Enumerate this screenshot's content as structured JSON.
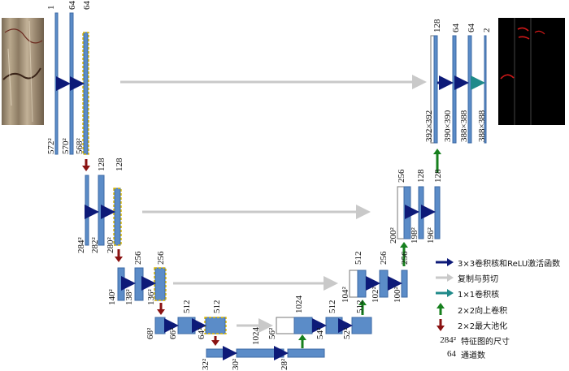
{
  "input_image": {
    "name": "input-image-tile"
  },
  "output_image": {
    "name": "output-segmentation-map"
  },
  "encoder": [
    {
      "channels": [
        "1",
        "64",
        "64"
      ],
      "sizes": [
        "572²",
        "570²",
        "568²"
      ]
    },
    {
      "channels": [
        "128",
        "128"
      ],
      "sizes": [
        "284²",
        "282²",
        "280²"
      ]
    },
    {
      "channels": [
        "256",
        "256"
      ],
      "sizes": [
        "140²",
        "138²",
        "136²"
      ]
    },
    {
      "channels": [
        "512",
        "512"
      ],
      "sizes": [
        "68²",
        "66²",
        "64²"
      ]
    },
    {
      "channels": [
        "1024",
        "1024"
      ],
      "sizes": [
        "32²",
        "30²",
        "28²"
      ]
    }
  ],
  "decoder": [
    {
      "channels": [
        "1024",
        "512",
        "512"
      ],
      "sizes": [
        "56²",
        "54²",
        "52²"
      ]
    },
    {
      "channels": [
        "512",
        "256",
        "256"
      ],
      "sizes": [
        "104²",
        "102²",
        "100²"
      ]
    },
    {
      "channels": [
        "256",
        "128",
        "128"
      ],
      "sizes": [
        "200²",
        "198²",
        "196²"
      ]
    },
    {
      "channels": [
        "128",
        "64",
        "64",
        "2"
      ],
      "sizes": [
        "392×392",
        "390×390",
        "388×388",
        "388×388"
      ]
    }
  ],
  "legend": {
    "conv": "3×3卷积核和ReLU激活函数",
    "copy": "复制与剪切",
    "conv1": "1×1卷积核",
    "upconv": "2×2向上卷积",
    "pool": "2×2最大池化",
    "size_example": "284²",
    "size_desc": "特征图的尺寸",
    "channel_example": "64",
    "channel_desc": "通道数"
  },
  "colors": {
    "block": "#5b8cc8",
    "block_border": "#3c6aa5",
    "conv_arrow": "#0d1a78",
    "copy_arrow": "#c9c9c9",
    "conv1_arrow": "#1f8a8a",
    "upconv_arrow": "#17801e",
    "pool_arrow": "#8a1212",
    "crop_outline": "#d7b400"
  }
}
